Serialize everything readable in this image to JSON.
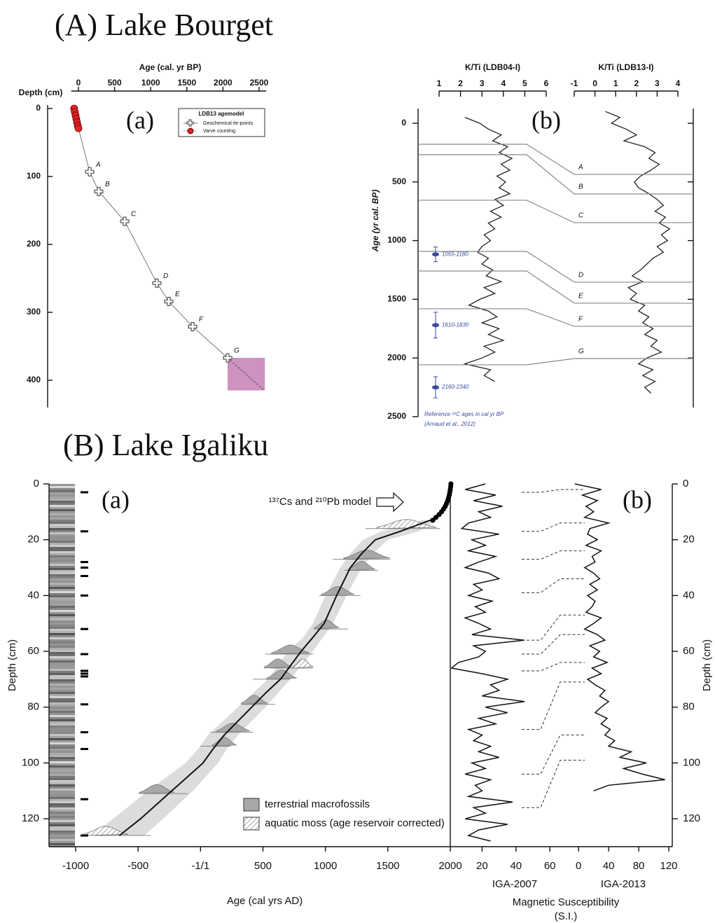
{
  "sections": [
    "(A) Lake Bourget",
    "(B) Lake Igaliku"
  ],
  "chart_data": [
    {
      "type": "line",
      "panel": "(a)",
      "xlabel": "Age (cal. yr BP)",
      "ylabel": "Depth (cm)",
      "xlim": [
        -100,
        2600
      ],
      "xticks": [
        0,
        500,
        1000,
        1500,
        2000,
        2500
      ],
      "ylim": [
        0,
        440
      ],
      "yticks": [
        0,
        100,
        200,
        300,
        400
      ],
      "legend_title": "LDB13 agemodel",
      "series": [
        {
          "name": "Geochemical tie-points",
          "color": "#ffffff",
          "x": [
            155,
            281,
            640,
            1085,
            1250,
            1580,
            2064
          ],
          "values": [
            93,
            122,
            166,
            257,
            284,
            321,
            367
          ],
          "point_labels": [
            "A",
            "B",
            "C",
            "D",
            "E",
            "F",
            "G"
          ]
        },
        {
          "name": "Varve counting",
          "color": "#e02424",
          "x": [
            -60,
            -50,
            -40,
            -30,
            -20,
            -10,
            0
          ],
          "values": [
            0,
            5,
            10,
            15,
            20,
            25,
            29
          ]
        }
      ],
      "extrapolation": {
        "x": [
          2064,
          2570
        ],
        "values": [
          367,
          415
        ]
      },
      "uncertainty_box": {
        "x": [
          2064,
          2580
        ],
        "values": [
          367,
          415
        ],
        "color": "#c47fb4"
      }
    },
    {
      "type": "line",
      "panel": "(b)",
      "ylabel": "Age (yr cal. BP)",
      "ylim": [
        -100,
        2500
      ],
      "yticks": [
        0,
        500,
        1000,
        1500,
        2000,
        2500
      ],
      "series": [
        {
          "name": "K/Ti (LDB04-I)",
          "xlim": [
            1,
            6
          ],
          "xticks": [
            1,
            2,
            3,
            4,
            5,
            6
          ],
          "ages": [
            -50,
            0,
            50,
            100,
            150,
            200,
            250,
            300,
            350,
            400,
            450,
            500,
            550,
            600,
            650,
            700,
            750,
            800,
            850,
            900,
            950,
            1000,
            1050,
            1100,
            1150,
            1200,
            1250,
            1300,
            1350,
            1400,
            1450,
            1500,
            1550,
            1600,
            1650,
            1700,
            1750,
            1800,
            1850,
            1900,
            1950,
            2000,
            2050,
            2100,
            2150,
            2200
          ],
          "values": [
            2.2,
            2.9,
            3.3,
            3.9,
            3.5,
            4.2,
            3.8,
            4.4,
            3.9,
            4.3,
            3.7,
            4.1,
            3.8,
            4.3,
            3.6,
            4.0,
            3.4,
            3.9,
            3.3,
            3.6,
            3.1,
            3.4,
            3.0,
            2.8,
            3.3,
            3.0,
            3.5,
            3.2,
            3.9,
            3.1,
            3.6,
            2.9,
            2.4,
            3.3,
            3.7,
            3.0,
            3.8,
            3.3,
            4.0,
            3.1,
            3.6,
            3.0,
            2.2,
            3.4,
            3.1,
            3.6
          ]
        },
        {
          "name": "K/Ti (LDB13-I)",
          "xlim": [
            -1,
            4
          ],
          "xticks": [
            -1,
            0,
            1,
            2,
            3,
            4
          ],
          "ages": [
            -100,
            -50,
            0,
            50,
            100,
            150,
            200,
            250,
            300,
            350,
            400,
            450,
            500,
            550,
            600,
            650,
            700,
            750,
            800,
            850,
            900,
            950,
            1000,
            1050,
            1100,
            1150,
            1200,
            1250,
            1300,
            1350,
            1400,
            1450,
            1500,
            1550,
            1600,
            1650,
            1700,
            1750,
            1800,
            1850,
            1900,
            1950,
            2000,
            2050,
            2100,
            2150,
            2200,
            2250,
            2300
          ],
          "values": [
            0.5,
            1.2,
            0.8,
            1.5,
            2.0,
            1.4,
            2.4,
            2.9,
            2.6,
            3.1,
            2.7,
            2.2,
            1.9,
            2.1,
            2.6,
            3.0,
            3.3,
            2.9,
            3.4,
            3.1,
            3.6,
            3.2,
            3.5,
            3.0,
            3.3,
            2.8,
            2.5,
            2.2,
            1.8,
            2.3,
            1.6,
            2.0,
            1.7,
            2.4,
            2.1,
            2.6,
            2.3,
            2.8,
            2.4,
            3.0,
            2.7,
            3.2,
            2.5,
            2.1,
            2.8,
            2.3,
            2.9,
            2.4,
            2.7
          ]
        }
      ],
      "tie_lines": {
        "labels": [
          "A",
          "B",
          "C",
          "D",
          "E",
          "F",
          "G"
        ],
        "left_ages": [
          179,
          268,
          656,
          1092,
          1259,
          1581,
          2058
        ],
        "right_ages": [
          436,
          603,
          847,
          1354,
          1533,
          1730,
          2005
        ]
      },
      "reference_ages": {
        "labels": [
          "1055-1180",
          "1610-1830",
          "2160-2340"
        ],
        "ages": [
          1117,
          1720,
          2250
        ],
        "low": [
          1055,
          1610,
          2160
        ],
        "high": [
          1180,
          1830,
          2340
        ],
        "color": "#3b4aa0"
      },
      "note": [
        "Reference ¹⁴C ages in cal yr BP",
        "(Arnaud et al., 2012)"
      ]
    },
    {
      "type": "line",
      "panel": "(a)",
      "xlabel": "Age (cal yrs AD)",
      "ylabel": "Depth (cm)",
      "xlim": [
        -1000,
        2000
      ],
      "xticks": [
        -1000,
        -500,
        {
          "value": 0,
          "label": "-1/1"
        },
        500,
        1000,
        1500,
        2000
      ],
      "ylim": [
        0,
        130
      ],
      "yticks": [
        0,
        20,
        40,
        60,
        80,
        100,
        120
      ],
      "annotation": "¹³⁷Cs and ²¹⁰Pb model",
      "pb_model": {
        "depths": [
          0,
          1,
          2,
          3,
          4,
          5,
          6,
          7,
          8,
          9,
          10,
          11,
          12,
          13
        ],
        "values": [
          2005,
          2003,
          2000,
          1996,
          1992,
          1986,
          1979,
          1970,
          1960,
          1946,
          1930,
          1910,
          1885,
          1860
        ]
      },
      "age_model": {
        "depths": [
          13,
          17,
          20,
          25,
          30,
          40,
          50,
          55,
          60,
          70,
          75,
          80,
          90,
          95,
          100,
          110,
          120,
          126
        ],
        "values": [
          1840,
          1600,
          1400,
          1290,
          1200,
          1090,
          990,
          900,
          805,
          640,
          520,
          410,
          190,
          100,
          20,
          -230,
          -480,
          -650
        ],
        "band_low": [
          1780,
          1450,
          1300,
          1200,
          1120,
          1000,
          900,
          820,
          700,
          540,
          420,
          300,
          60,
          -20,
          -120,
          -420,
          -700,
          -870
        ],
        "band_high": [
          1900,
          1750,
          1500,
          1380,
          1290,
          1170,
          1060,
          980,
          900,
          720,
          620,
          520,
          300,
          210,
          140,
          -60,
          -300,
          -450
        ]
      },
      "series": [
        {
          "name": "terrestrial macrofossils",
          "color": "#a8a8a8",
          "hatch": false,
          "depths": [
            27,
            31,
            40,
            52,
            61,
            66,
            70,
            79,
            89,
            94,
            111
          ],
          "values": [
            1330,
            1290,
            1100,
            1010,
            720,
            620,
            650,
            430,
            260,
            190,
            -350
          ],
          "low": [
            1060,
            1150,
            950,
            930,
            520,
            560,
            420,
            340,
            80,
            0,
            -450
          ],
          "high": [
            1520,
            1420,
            1280,
            1180,
            900,
            830,
            720,
            600,
            420,
            240,
            -100
          ]
        },
        {
          "name": "aquatic moss (age reservoir corrected)",
          "color": "#ffffff",
          "hatch": true,
          "depths": [
            16,
            66,
            126
          ],
          "values": [
            1650,
            820,
            -760
          ],
          "low": [
            1320,
            700,
            -850
          ],
          "high": [
            1920,
            900,
            -400
          ]
        }
      ],
      "sample_depths": [
        3,
        17,
        28,
        30,
        33,
        40,
        52,
        61,
        67,
        68,
        69,
        79,
        89,
        95,
        113,
        126
      ]
    },
    {
      "type": "line",
      "panel": "(b)",
      "xlabel": "Magnetic Susceptibility",
      "xlabel_unit": "(S.I.)",
      "ylabel": "Depth (cm)",
      "ylim": [
        0,
        130
      ],
      "yticks": [
        0,
        20,
        40,
        60,
        80,
        100,
        120
      ],
      "series": [
        {
          "name": "IGA-2007",
          "xlim": [
            0,
            75
          ],
          "xticks": [
            20,
            40,
            60
          ],
          "depths": [
            0,
            2,
            4,
            6,
            8,
            10,
            12,
            14,
            16,
            18,
            20,
            22,
            24,
            26,
            28,
            30,
            32,
            34,
            36,
            38,
            40,
            42,
            44,
            46,
            48,
            50,
            52,
            54,
            56,
            58,
            60,
            62,
            64,
            66,
            68,
            70,
            72,
            74,
            76,
            78,
            80,
            82,
            84,
            86,
            88,
            90,
            92,
            94,
            96,
            98,
            100,
            102,
            104,
            106,
            108,
            110,
            112,
            114,
            116,
            118,
            120,
            122,
            124,
            126,
            128
          ],
          "values": [
            22,
            10,
            28,
            15,
            32,
            18,
            25,
            12,
            8,
            30,
            14,
            22,
            12,
            28,
            18,
            10,
            24,
            30,
            15,
            20,
            12,
            26,
            16,
            22,
            10,
            18,
            25,
            14,
            45,
            15,
            22,
            18,
            6,
            2,
            20,
            35,
            25,
            30,
            20,
            45,
            22,
            35,
            18,
            28,
            12,
            20,
            15,
            25,
            18,
            30,
            14,
            22,
            10,
            25,
            16,
            20,
            12,
            38,
            15,
            22,
            10,
            35,
            18,
            12,
            25
          ]
        },
        {
          "name": "IGA-2013",
          "xlim": [
            -30,
            120
          ],
          "xticks": [
            0,
            40,
            80,
            120
          ],
          "depths": [
            0,
            2,
            4,
            6,
            8,
            10,
            12,
            14,
            16,
            18,
            20,
            22,
            24,
            26,
            28,
            30,
            32,
            34,
            36,
            38,
            40,
            42,
            44,
            46,
            48,
            50,
            52,
            54,
            56,
            58,
            60,
            62,
            64,
            66,
            68,
            70,
            72,
            74,
            76,
            78,
            80,
            82,
            84,
            86,
            88,
            90,
            92,
            94,
            96,
            98,
            100,
            102,
            104,
            106,
            108,
            110
          ],
          "values": [
            -5,
            30,
            5,
            25,
            10,
            20,
            8,
            40,
            15,
            12,
            25,
            10,
            30,
            18,
            22,
            8,
            20,
            28,
            15,
            25,
            12,
            22,
            18,
            10,
            30,
            20,
            8,
            25,
            35,
            15,
            28,
            20,
            38,
            18,
            30,
            12,
            22,
            35,
            28,
            40,
            30,
            22,
            38,
            30,
            42,
            35,
            48,
            40,
            70,
            55,
            90,
            60,
            85,
            115,
            40,
            20
          ]
        }
      ],
      "tie_lines": {
        "left_depths": [
          3,
          17,
          27,
          39,
          56,
          61,
          67,
          88,
          104,
          116
        ],
        "right_depths": [
          2,
          14,
          24,
          34,
          47,
          54,
          64,
          71,
          90,
          99
        ]
      }
    }
  ]
}
